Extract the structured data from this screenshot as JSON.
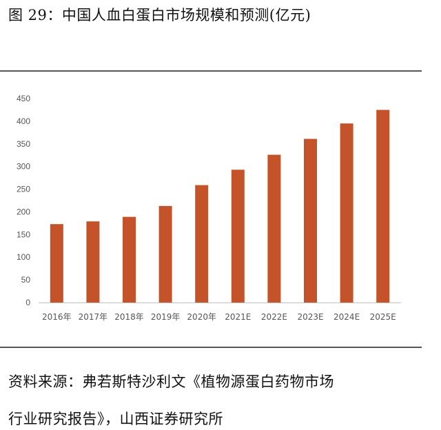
{
  "title": "图 29：中国人血白蛋白市场规模和预测(亿元)",
  "source_line1": "资料来源：弗若斯特沙利文《植物源蛋白药物市场",
  "source_line2": "行业研究报告》，山西证券研究所",
  "chart_data": {
    "type": "bar",
    "categories": [
      "2016年",
      "2017年",
      "2018年",
      "2019年",
      "2020年",
      "2021E",
      "2022E",
      "2023E",
      "2024E",
      "2025E"
    ],
    "values": [
      173,
      179,
      189,
      213,
      259,
      293,
      326,
      361,
      395,
      425
    ],
    "ylim": [
      0,
      450
    ],
    "yticks": [
      0,
      50,
      100,
      150,
      200,
      250,
      300,
      350,
      400,
      450
    ],
    "bar_color": "#c4532a",
    "grid": false,
    "legend": "none"
  }
}
